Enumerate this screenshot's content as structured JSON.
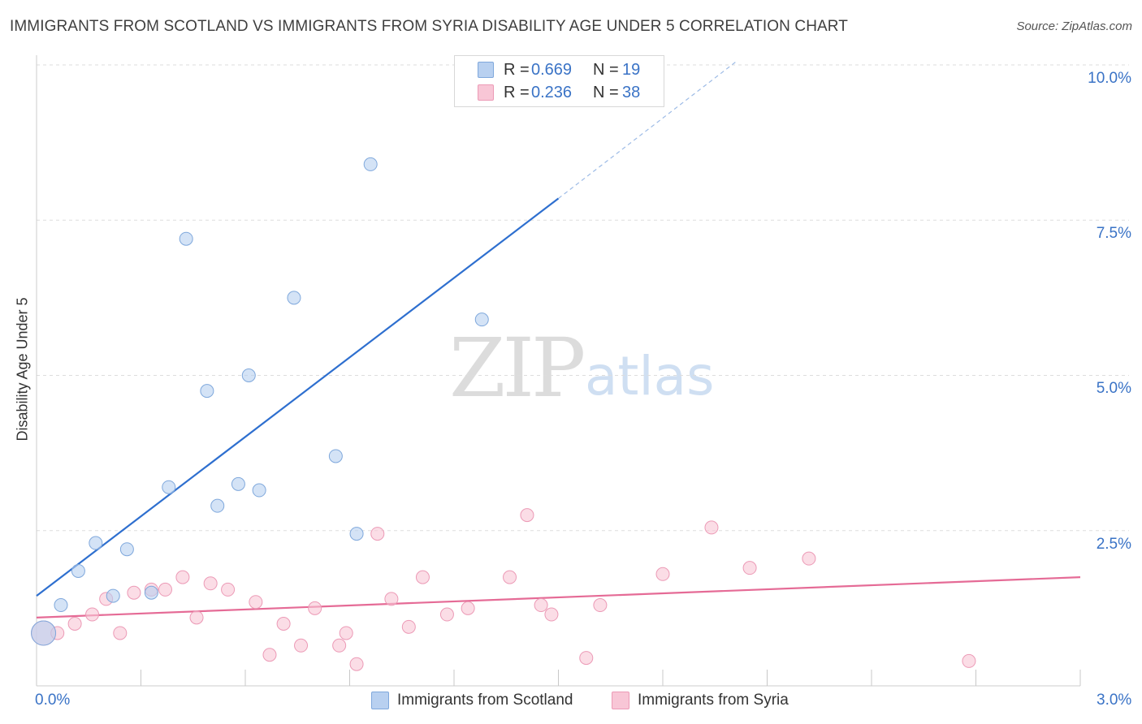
{
  "header": {
    "title": "IMMIGRANTS FROM SCOTLAND VS IMMIGRANTS FROM SYRIA DISABILITY AGE UNDER 5 CORRELATION CHART",
    "source": "Source: ZipAtlas.com"
  },
  "watermark": {
    "zip": "ZIP",
    "atlas": "atlas"
  },
  "legend_top": {
    "rows": [
      {
        "r_label": "R =",
        "r_value": "0.669",
        "n_label": "N =",
        "n_value": "19",
        "color": "#b8d0f0"
      },
      {
        "r_label": "R =",
        "r_value": "0.236",
        "n_label": "N =",
        "n_value": "38",
        "color": "#f8c6d6"
      }
    ]
  },
  "legend_bottom": {
    "items": [
      {
        "label": "Immigrants from Scotland",
        "color": "#b8d0f0"
      },
      {
        "label": "Immigrants from Syria",
        "color": "#f8c6d6"
      }
    ]
  },
  "axes": {
    "ylabel": "Disability Age Under 5",
    "y_ticks": [
      "10.0%",
      "7.5%",
      "5.0%",
      "2.5%"
    ],
    "x_ticks": [
      "0.0%",
      "3.0%"
    ]
  },
  "colors": {
    "scotland_fill": "#b8d0f0",
    "scotland_stroke": "#7fa8dc",
    "scotland_line": "#2e6fcf",
    "syria_fill": "#f8c6d6",
    "syria_stroke": "#ec9ab6",
    "syria_line": "#e56b96",
    "grid": "#dddddd"
  },
  "chart_data": {
    "type": "scatter",
    "title": "IMMIGRANTS FROM SCOTLAND VS IMMIGRANTS FROM SYRIA DISABILITY AGE UNDER 5 CORRELATION CHART",
    "xlabel": "",
    "ylabel": "Disability Age Under 5",
    "xlim": [
      0,
      3.0
    ],
    "ylim": [
      0,
      10.4
    ],
    "grid": true,
    "legend_position": "top-center",
    "series": [
      {
        "name": "Immigrants from Scotland",
        "r": 0.669,
        "n": 19,
        "points": [
          {
            "x": 0.02,
            "y": 0.85,
            "size": "large"
          },
          {
            "x": 0.07,
            "y": 1.3
          },
          {
            "x": 0.12,
            "y": 1.85
          },
          {
            "x": 0.17,
            "y": 2.3
          },
          {
            "x": 0.22,
            "y": 1.45
          },
          {
            "x": 0.26,
            "y": 2.2
          },
          {
            "x": 0.33,
            "y": 1.5
          },
          {
            "x": 0.38,
            "y": 3.2
          },
          {
            "x": 0.43,
            "y": 7.2
          },
          {
            "x": 0.49,
            "y": 4.75
          },
          {
            "x": 0.52,
            "y": 2.9
          },
          {
            "x": 0.58,
            "y": 3.25
          },
          {
            "x": 0.61,
            "y": 5.0
          },
          {
            "x": 0.64,
            "y": 3.15
          },
          {
            "x": 0.74,
            "y": 6.25
          },
          {
            "x": 0.86,
            "y": 3.7
          },
          {
            "x": 0.92,
            "y": 2.45
          },
          {
            "x": 0.96,
            "y": 8.4
          },
          {
            "x": 1.28,
            "y": 5.9
          }
        ],
        "trendline": {
          "x": [
            0.0,
            1.5
          ],
          "y": [
            1.45,
            7.85
          ],
          "dashed_extension": {
            "x": [
              1.5,
              2.01
            ],
            "y": [
              7.85,
              10.05
            ]
          }
        }
      },
      {
        "name": "Immigrants from Syria",
        "r": 0.236,
        "n": 38,
        "points": [
          {
            "x": 0.02,
            "y": 0.85,
            "size": "large"
          },
          {
            "x": 0.06,
            "y": 0.85
          },
          {
            "x": 0.11,
            "y": 1.0
          },
          {
            "x": 0.16,
            "y": 1.15
          },
          {
            "x": 0.2,
            "y": 1.4
          },
          {
            "x": 0.24,
            "y": 0.85
          },
          {
            "x": 0.28,
            "y": 1.5
          },
          {
            "x": 0.33,
            "y": 1.55
          },
          {
            "x": 0.37,
            "y": 1.55
          },
          {
            "x": 0.42,
            "y": 1.75
          },
          {
            "x": 0.46,
            "y": 1.1
          },
          {
            "x": 0.5,
            "y": 1.65
          },
          {
            "x": 0.55,
            "y": 1.55
          },
          {
            "x": 0.63,
            "y": 1.35
          },
          {
            "x": 0.67,
            "y": 0.5
          },
          {
            "x": 0.71,
            "y": 1.0
          },
          {
            "x": 0.76,
            "y": 0.65
          },
          {
            "x": 0.8,
            "y": 1.25
          },
          {
            "x": 0.87,
            "y": 0.65
          },
          {
            "x": 0.89,
            "y": 0.85
          },
          {
            "x": 0.92,
            "y": 0.35
          },
          {
            "x": 0.98,
            "y": 2.45
          },
          {
            "x": 1.02,
            "y": 1.4
          },
          {
            "x": 1.07,
            "y": 0.95
          },
          {
            "x": 1.11,
            "y": 1.75
          },
          {
            "x": 1.18,
            "y": 1.15
          },
          {
            "x": 1.24,
            "y": 1.25
          },
          {
            "x": 1.36,
            "y": 1.75
          },
          {
            "x": 1.41,
            "y": 2.75
          },
          {
            "x": 1.45,
            "y": 1.3
          },
          {
            "x": 1.48,
            "y": 1.15
          },
          {
            "x": 1.58,
            "y": 0.45
          },
          {
            "x": 1.62,
            "y": 1.3
          },
          {
            "x": 1.8,
            "y": 1.8
          },
          {
            "x": 1.94,
            "y": 2.55
          },
          {
            "x": 2.05,
            "y": 1.9
          },
          {
            "x": 2.22,
            "y": 2.05
          },
          {
            "x": 2.68,
            "y": 0.4
          }
        ],
        "trendline": {
          "x": [
            0.0,
            3.0
          ],
          "y": [
            1.1,
            1.75
          ]
        }
      }
    ]
  }
}
